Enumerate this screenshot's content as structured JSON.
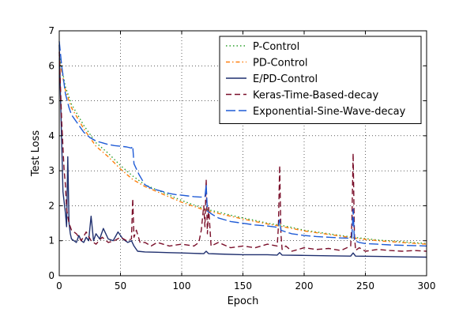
{
  "chart_data": {
    "type": "line",
    "title": "",
    "xlabel": "Epoch",
    "ylabel": "Test Loss",
    "xlim": [
      0,
      300
    ],
    "ylim": [
      0,
      7
    ],
    "xticks": [
      0,
      50,
      100,
      150,
      200,
      250,
      300
    ],
    "yticks": [
      0,
      1,
      2,
      3,
      4,
      5,
      6,
      7
    ],
    "grid": true,
    "legend_position": "top-right",
    "series": [
      {
        "name": "P-Control",
        "color": "#2ca02c",
        "dash": "dotted",
        "x": [
          0,
          5,
          10,
          20,
          30,
          40,
          50,
          60,
          70,
          80,
          90,
          100,
          110,
          120,
          130,
          140,
          150,
          160,
          170,
          180,
          190,
          200,
          220,
          240,
          260,
          280,
          300
        ],
        "y": [
          6.3,
          5.4,
          4.9,
          4.3,
          3.8,
          3.5,
          3.15,
          2.85,
          2.6,
          2.45,
          2.3,
          2.15,
          2.02,
          1.9,
          1.82,
          1.73,
          1.65,
          1.58,
          1.5,
          1.45,
          1.38,
          1.3,
          1.2,
          1.1,
          1.02,
          0.97,
          0.92
        ]
      },
      {
        "name": "PD-Control",
        "color": "#ff7f0e",
        "dash": "dashdot",
        "x": [
          0,
          5,
          10,
          20,
          30,
          40,
          50,
          60,
          70,
          80,
          90,
          100,
          110,
          120,
          130,
          140,
          150,
          160,
          170,
          180,
          190,
          200,
          220,
          240,
          260,
          280,
          300
        ],
        "y": [
          6.2,
          5.3,
          4.8,
          4.2,
          3.7,
          3.4,
          3.05,
          2.75,
          2.55,
          2.4,
          2.25,
          2.1,
          1.98,
          1.86,
          1.78,
          1.7,
          1.62,
          1.55,
          1.48,
          1.42,
          1.35,
          1.28,
          1.18,
          1.08,
          1.0,
          0.95,
          0.9
        ]
      },
      {
        "name": "E/PD-Control",
        "color": "#1f2f6e",
        "dash": "solid",
        "x": [
          0,
          1,
          3,
          5,
          6,
          7,
          8,
          9,
          10,
          12,
          14,
          16,
          18,
          20,
          22,
          24,
          26,
          28,
          30,
          33,
          36,
          40,
          44,
          48,
          52,
          56,
          59,
          61,
          64,
          70,
          80,
          90,
          100,
          110,
          118,
          120,
          122,
          130,
          150,
          170,
          178,
          180,
          182,
          200,
          220,
          238,
          240,
          242,
          260,
          280,
          300
        ],
        "y": [
          6.6,
          5.2,
          2.4,
          1.8,
          1.4,
          3.4,
          1.5,
          1.2,
          1.05,
          1.0,
          0.95,
          1.15,
          1.0,
          0.95,
          1.1,
          1.0,
          1.7,
          1.0,
          1.2,
          1.05,
          1.35,
          1.05,
          1.0,
          1.25,
          1.05,
          0.95,
          1.0,
          0.85,
          0.7,
          0.68,
          0.67,
          0.66,
          0.65,
          0.64,
          0.63,
          0.7,
          0.63,
          0.62,
          0.6,
          0.6,
          0.59,
          0.66,
          0.59,
          0.58,
          0.57,
          0.56,
          0.65,
          0.56,
          0.55,
          0.54,
          0.53
        ]
      },
      {
        "name": "Keras-Time-Based-decay",
        "color": "#7a0f2a",
        "dash": "dashed",
        "x": [
          0,
          2,
          4,
          5,
          6,
          8,
          10,
          14,
          18,
          22,
          26,
          30,
          35,
          40,
          45,
          50,
          55,
          59,
          60,
          61,
          63,
          66,
          70,
          75,
          80,
          90,
          100,
          110,
          114,
          116,
          118,
          119,
          120,
          121,
          122,
          124,
          130,
          140,
          150,
          160,
          170,
          178,
          179,
          180,
          181,
          182,
          185,
          190,
          200,
          210,
          220,
          230,
          238,
          239,
          240,
          241,
          242,
          245,
          250,
          260,
          270,
          280,
          290,
          300
        ],
        "y": [
          6.4,
          4.4,
          3.0,
          2.6,
          1.9,
          1.5,
          1.3,
          1.2,
          1.0,
          1.25,
          1.0,
          0.9,
          1.1,
          0.95,
          1.0,
          1.1,
          1.0,
          1.05,
          2.2,
          1.1,
          1.3,
          0.95,
          0.95,
          0.85,
          0.95,
          0.85,
          0.9,
          0.85,
          0.95,
          1.3,
          2.0,
          1.4,
          2.75,
          1.2,
          1.95,
          0.85,
          0.95,
          0.8,
          0.85,
          0.8,
          0.9,
          0.85,
          1.4,
          3.15,
          1.2,
          0.75,
          0.85,
          0.7,
          0.8,
          0.75,
          0.78,
          0.72,
          0.85,
          1.5,
          3.5,
          1.2,
          0.72,
          0.8,
          0.7,
          0.75,
          0.72,
          0.7,
          0.72,
          0.7
        ]
      },
      {
        "name": "Exponential-Sine-Wave-decay",
        "color": "#1f5bd6",
        "dash": "longdash",
        "x": [
          0,
          2,
          5,
          8,
          10,
          15,
          20,
          25,
          30,
          35,
          40,
          45,
          50,
          55,
          59,
          60,
          61,
          65,
          70,
          75,
          80,
          85,
          90,
          95,
          100,
          105,
          110,
          115,
          119,
          120,
          121,
          125,
          130,
          140,
          150,
          160,
          170,
          179,
          180,
          181,
          185,
          190,
          200,
          210,
          220,
          230,
          239,
          240,
          241,
          245,
          250,
          260,
          270,
          280,
          290,
          300
        ],
        "y": [
          6.7,
          6.0,
          5.2,
          4.8,
          4.6,
          4.35,
          4.1,
          3.95,
          3.85,
          3.8,
          3.75,
          3.72,
          3.7,
          3.68,
          3.65,
          3.7,
          3.2,
          2.9,
          2.6,
          2.5,
          2.45,
          2.4,
          2.35,
          2.32,
          2.3,
          2.28,
          2.26,
          2.25,
          2.25,
          2.6,
          1.85,
          1.75,
          1.65,
          1.55,
          1.5,
          1.45,
          1.42,
          1.38,
          1.6,
          1.3,
          1.25,
          1.2,
          1.15,
          1.12,
          1.1,
          1.08,
          1.07,
          1.9,
          1.0,
          0.95,
          0.92,
          0.9,
          0.88,
          0.87,
          0.86,
          0.85
        ]
      }
    ]
  }
}
